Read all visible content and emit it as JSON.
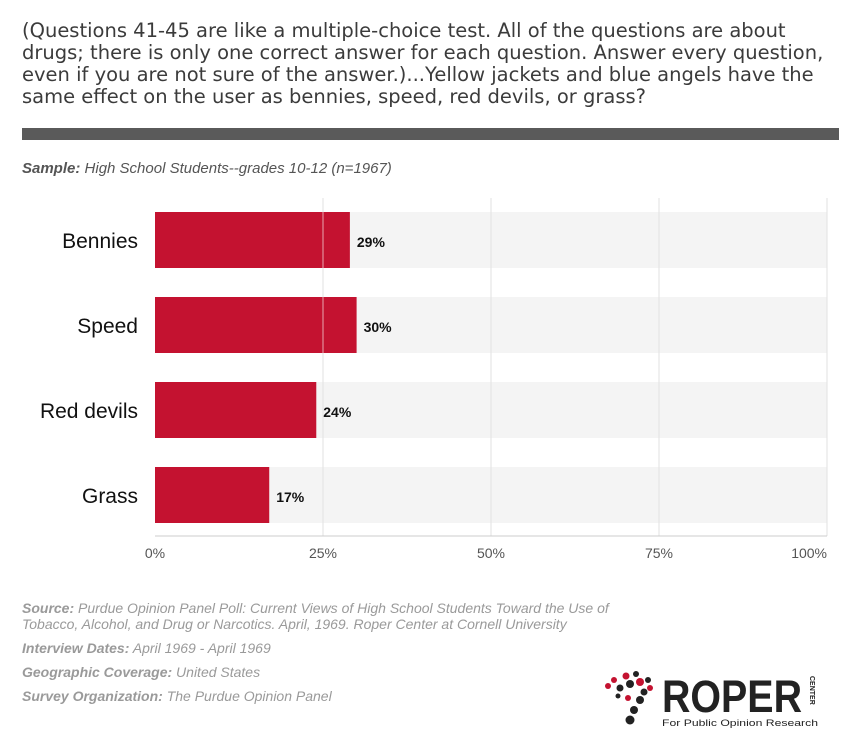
{
  "question": "(Questions 41-45 are like a multiple-choice test. All of the questions are about drugs; there is only one correct answer for each question. Answer every question, even if you are not sure of the answer.)...Yellow jackets and blue angels have the same effect on the user as bennies, speed, red devils, or grass?",
  "sample": {
    "label": "Sample:",
    "value": "High School Students--grades 10-12 (n=1967)"
  },
  "chart_data": {
    "type": "bar",
    "orientation": "horizontal",
    "categories": [
      "Bennies",
      "Speed",
      "Red devils",
      "Grass"
    ],
    "values": [
      29,
      30,
      24,
      17
    ],
    "value_labels": [
      "29%",
      "30%",
      "24%",
      "17%"
    ],
    "xlim": [
      0,
      100
    ],
    "xticks": [
      0,
      25,
      50,
      75,
      100
    ],
    "xtick_labels": [
      "0%",
      "25%",
      "50%",
      "75%",
      "100%"
    ],
    "grid": true,
    "bar_color": "#c41230",
    "track_color": "#f4f4f4"
  },
  "footer": {
    "source_label": "Source:",
    "source_value": "Purdue Opinion Panel Poll: Current Views of High School Students Toward the Use of Tobacco, Alcohol, and Drug or Narcotics. April, 1969. Roper Center at Cornell University",
    "dates_label": "Interview Dates:",
    "dates_value": "April 1969 - April 1969",
    "geo_label": "Geographic Coverage:",
    "geo_value": "United States",
    "org_label": "Survey Organization:",
    "org_value": "The Purdue Opinion Panel"
  },
  "logo": {
    "name": "ROPER",
    "side_text": "CENTER",
    "tagline": "For Public Opinion Research"
  }
}
